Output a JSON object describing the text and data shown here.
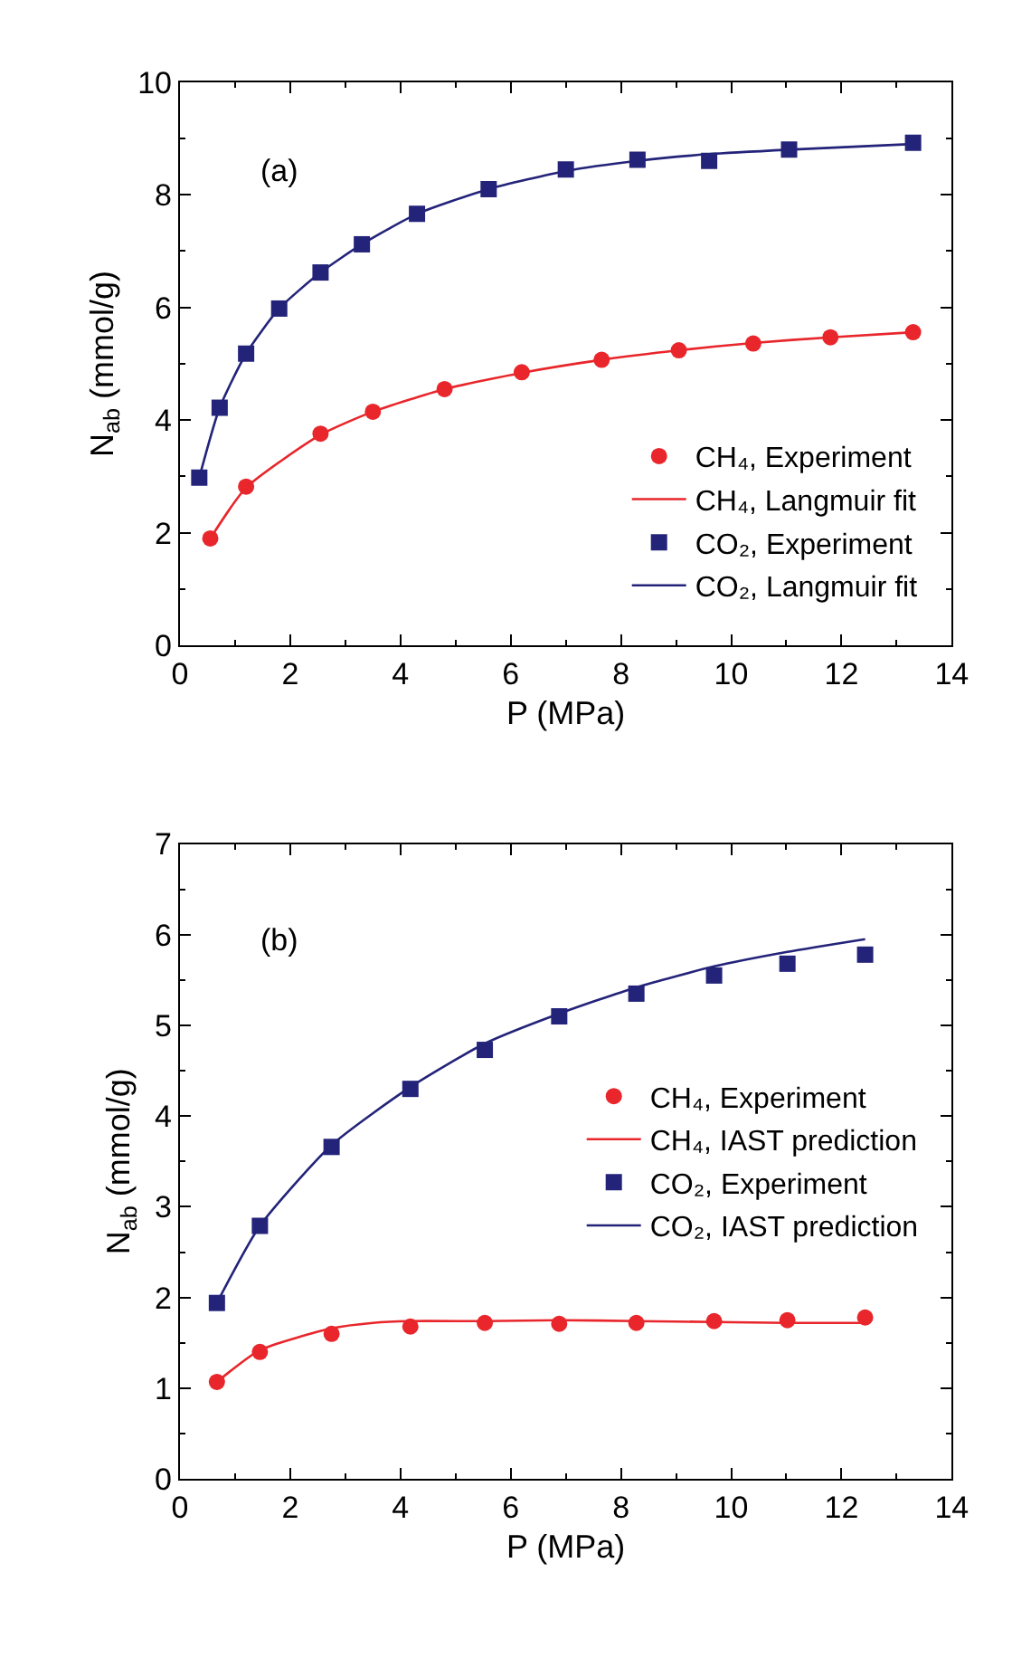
{
  "chart_data": [
    {
      "type": "scatter",
      "xlabel": "P (MPa)",
      "ylabel": "N$_{ab}$ (mmol/g)",
      "annotations": [
        "(a)"
      ],
      "xlim": [
        0,
        14
      ],
      "xticks": [
        0,
        2,
        4,
        6,
        8,
        10,
        12,
        14
      ],
      "ylim": [
        0,
        10
      ],
      "yticks": [
        0,
        2,
        4,
        6,
        8,
        10
      ],
      "grid": false,
      "legend": "bottom right",
      "series": [
        {
          "name": "CH₄, Experiment",
          "marker": "circle",
          "color": "#e8262b",
          "x": [
            0.55,
            1.2,
            2.55,
            3.5,
            4.8,
            6.2,
            7.65,
            9.05,
            10.4,
            11.8,
            13.3
          ],
          "values": [
            1.9,
            2.82,
            3.76,
            4.15,
            4.55,
            4.85,
            5.07,
            5.24,
            5.36,
            5.47,
            5.56
          ]
        },
        {
          "name": "CH₄, Langmuir fit",
          "type": "line",
          "line_style": "solid",
          "color": "#e8262b",
          "x": [
            0.55,
            1.2,
            2.55,
            3.5,
            4.8,
            6.2,
            7.65,
            9.05,
            10.4,
            11.8,
            13.3
          ],
          "values": [
            1.9,
            2.8,
            3.74,
            4.15,
            4.55,
            4.84,
            5.07,
            5.24,
            5.37,
            5.47,
            5.56
          ]
        },
        {
          "name": "CO₂, Experiment",
          "marker": "square",
          "color": "#23237a",
          "x": [
            0.35,
            0.72,
            1.2,
            1.8,
            2.55,
            3.3,
            4.3,
            5.6,
            7.0,
            8.3,
            9.6,
            11.05,
            13.3
          ],
          "values": [
            2.98,
            4.22,
            5.18,
            5.98,
            6.62,
            7.12,
            7.66,
            8.1,
            8.45,
            8.62,
            8.6,
            8.8,
            8.92
          ]
        },
        {
          "name": "CO₂, Langmuir fit",
          "type": "line",
          "line_style": "solid",
          "color": "#23237a",
          "x": [
            0.35,
            0.72,
            1.2,
            1.8,
            2.55,
            3.3,
            4.3,
            5.6,
            7.0,
            8.3,
            9.6,
            11.05,
            13.3
          ],
          "values": [
            2.98,
            4.22,
            5.18,
            5.98,
            6.62,
            7.12,
            7.66,
            8.1,
            8.42,
            8.6,
            8.72,
            8.8,
            8.9
          ]
        }
      ]
    },
    {
      "type": "scatter",
      "xlabel": "P (MPa)",
      "ylabel": "N$_{ab}$ (mmol/g)",
      "annotations": [
        "(b)"
      ],
      "xlim": [
        0,
        14
      ],
      "xticks": [
        0,
        2,
        4,
        6,
        8,
        10,
        12,
        14
      ],
      "ylim": [
        0,
        7
      ],
      "yticks": [
        0,
        1,
        2,
        3,
        4,
        5,
        6,
        7
      ],
      "grid": false,
      "legend": "right",
      "series": [
        {
          "name": "CH₄, Experiment",
          "marker": "circle",
          "color": "#e8262b",
          "x": [
            0.67,
            1.45,
            2.75,
            4.18,
            5.53,
            6.88,
            8.28,
            9.69,
            11.02,
            12.43
          ],
          "values": [
            1.07,
            1.4,
            1.6,
            1.68,
            1.72,
            1.71,
            1.72,
            1.74,
            1.75,
            1.78
          ]
        },
        {
          "name": "CH₄, IAST prediction",
          "type": "line",
          "line_style": "solid",
          "color": "#e8262b",
          "x": [
            0.67,
            1.45,
            2.75,
            3.5,
            4.18,
            5.53,
            6.88,
            8.28,
            9.69,
            11.02,
            12.43
          ],
          "values": [
            1.07,
            1.42,
            1.66,
            1.72,
            1.74,
            1.74,
            1.75,
            1.74,
            1.73,
            1.72,
            1.72
          ]
        },
        {
          "name": "CO₂, Experiment",
          "marker": "square",
          "color": "#23237a",
          "x": [
            0.67,
            1.45,
            2.75,
            4.18,
            5.53,
            6.88,
            8.28,
            9.69,
            11.02,
            12.43
          ],
          "values": [
            1.94,
            2.79,
            3.66,
            4.3,
            4.73,
            5.1,
            5.35,
            5.55,
            5.68,
            5.78
          ]
        },
        {
          "name": "CO₂, IAST prediction",
          "type": "line",
          "line_style": "solid",
          "color": "#23237a",
          "x": [
            0.67,
            1.45,
            2.75,
            4.18,
            5.53,
            6.88,
            8.28,
            9.69,
            11.02,
            12.43
          ],
          "values": [
            1.94,
            2.79,
            3.68,
            4.32,
            4.8,
            5.13,
            5.42,
            5.65,
            5.81,
            5.95
          ]
        }
      ]
    }
  ]
}
